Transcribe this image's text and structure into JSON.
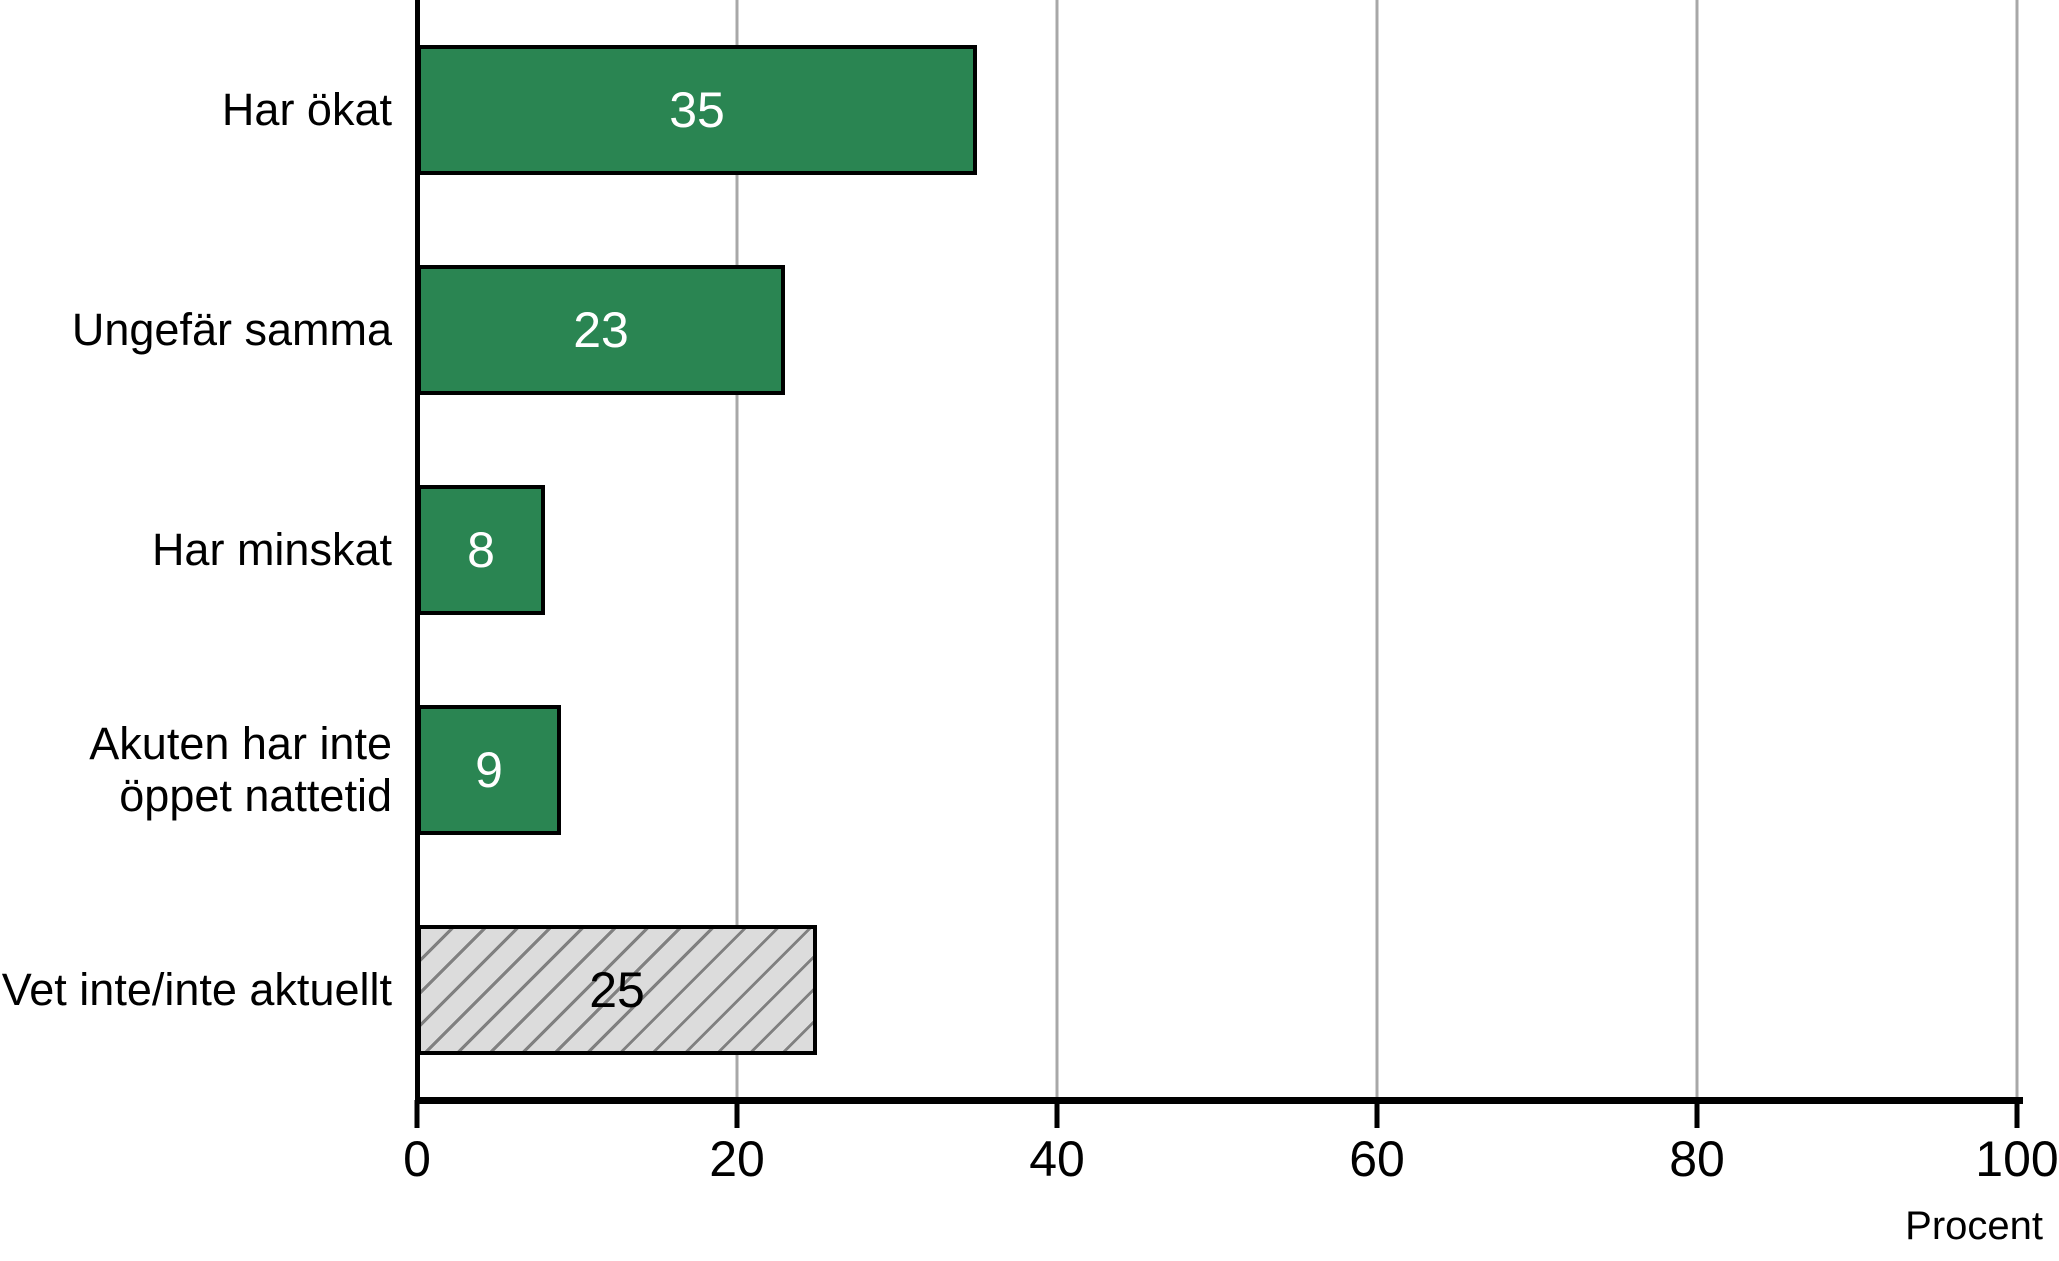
{
  "chart_data": {
    "type": "bar",
    "orientation": "horizontal",
    "title": "",
    "xlabel": "Procent",
    "ylabel": "",
    "xlim": [
      0,
      100
    ],
    "xticks": [
      0,
      20,
      40,
      60,
      80,
      100
    ],
    "grid": "vertical-gridlines-on",
    "legend_position": "none",
    "categories": [
      "Har ökat",
      "Ungefär samma",
      "Har minskat",
      "Akuten har inte\nöppet nattetid",
      "Vet inte/inte aktuellt"
    ],
    "values": [
      35,
      23,
      8,
      9,
      25
    ],
    "bar_styles": [
      "solid",
      "solid",
      "solid",
      "solid",
      "hatched"
    ],
    "colors": {
      "bar_fill": "#2a8552",
      "bar_border": "#000000",
      "hatch_fill": "#dcdcdc",
      "hatch_line": "#808080",
      "value_label_on_solid": "#ffffff",
      "value_label_on_hatched": "#000000",
      "gridline": "#a8a8a8",
      "axis": "#000000",
      "text": "#000000",
      "background": "#ffffff"
    }
  }
}
